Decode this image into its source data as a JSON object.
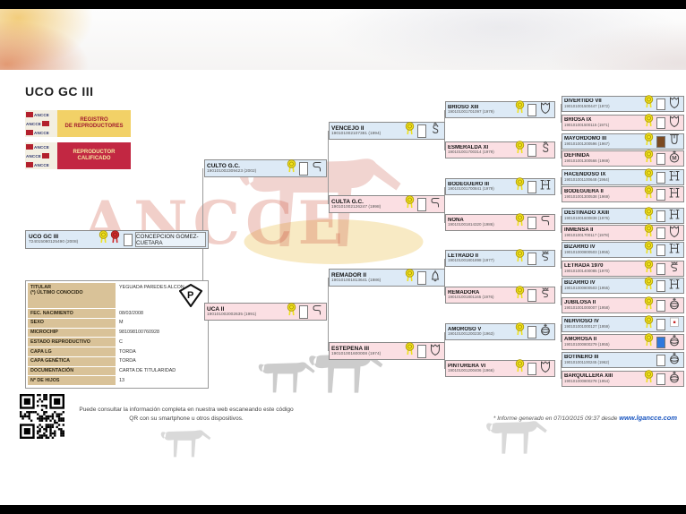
{
  "header": {
    "title": "UCO GC III"
  },
  "brand": {
    "mini_logo_text": "ANCCE",
    "watermark_text": "ANCCE"
  },
  "badges": [
    {
      "line1": "REGISTRO",
      "line2": "DE REPRODUCTORES",
      "bg": "#f2d167",
      "fg": "#a01a2e"
    },
    {
      "line1": "REPRODUCTOR",
      "line2": "CALIFICADO",
      "bg": "#c22742",
      "fg": "#f6e7a0"
    }
  ],
  "subject": {
    "name": "UCO GC III",
    "code": "724015080125490 (2008)",
    "owner": "CONCEPCION GOMEZ-CUETARA",
    "rosettes": [
      "yellow",
      "red"
    ],
    "coat": "white"
  },
  "details": {
    "rows": [
      {
        "label": "TITULAR",
        "label2": "(*) ÚLTIMO CONOCIDO",
        "value": "YEGUADA PAREDES ALCON",
        "tall": true,
        "p_mark": "P"
      },
      {
        "label": "FEC. NACIMIENTO",
        "value": "08/03/2008"
      },
      {
        "label": "SEXO",
        "value": "M"
      },
      {
        "label": "MICROCHIP",
        "value": "981098100760928"
      },
      {
        "label": "ESTADO REPRODUCTIVO",
        "value": "C"
      },
      {
        "label": "CAPA LG",
        "value": "TORDA"
      },
      {
        "label": "CAPA GENÉTICA",
        "value": "TORDA"
      },
      {
        "label": "DOCUMENTACIÓN",
        "value": "CARTA DE TITULARIDAD"
      },
      {
        "label": "Nº DE HIJOS",
        "value": "13"
      }
    ]
  },
  "pedigree": {
    "columns": [
      [
        {
          "name": "CULTO G.C.",
          "code": "190101002309423 (2002)",
          "sex": "m",
          "brand": "hook-s",
          "rosette": true,
          "coat": "white"
        },
        {
          "name": "UCA II",
          "code": "190101002002635 (1991)",
          "sex": "f",
          "brand": "hook-s",
          "rosette": true,
          "coat": "white"
        }
      ],
      [
        {
          "name": "VENCEJO II",
          "code": "190101002107381 (1994)",
          "sex": "m",
          "brand": "fancy-s",
          "rosette": true,
          "coat": "white"
        },
        {
          "name": "CULTA G.C.",
          "code": "190101002126247 (1998)",
          "sex": "f",
          "brand": "hook-s",
          "rosette": true,
          "coat": "white"
        },
        {
          "name": "REMADOR II",
          "code": "190101001813641 (1986)",
          "sex": "m",
          "brand": "bell",
          "rosette": true,
          "coat": "white"
        },
        {
          "name": "ESTEPEÑA III",
          "code": "190101001600008 (1974)",
          "sex": "f",
          "brand": "shield",
          "rosette": true,
          "coat": "white"
        }
      ],
      [
        {
          "name": "BRIOSO XIII",
          "code": "190101001701097 (1979)",
          "sex": "m",
          "brand": "shield",
          "rosette": true,
          "coat": "white"
        },
        {
          "name": "ESMERALDA XI",
          "code": "190101001700314 (1979)",
          "sex": "f",
          "brand": "fancy-s",
          "rosette": true,
          "coat": "white"
        },
        {
          "name": "BODEGUERO III",
          "code": "190101001700841 (1979)",
          "sex": "m",
          "brand": "h-brand",
          "rosette": true,
          "coat": "white"
        },
        {
          "name": "NONA",
          "code": "190101001814320 (1986)",
          "sex": "f",
          "brand": "hook-s",
          "rosette": true,
          "coat": "white"
        },
        {
          "name": "LETRADO II",
          "code": "190101001801898 (1977)",
          "sex": "m",
          "brand": "squiggle",
          "rosette": true,
          "coat": "white"
        },
        {
          "name": "REMADORA",
          "code": "190101001801165 (1976)",
          "sex": "f",
          "brand": "squiggle",
          "rosette": true,
          "coat": "white"
        },
        {
          "name": "AMOROSO V",
          "code": "190101001200230 (1963)",
          "sex": "m",
          "brand": "orb",
          "rosette": true,
          "coat": "white"
        },
        {
          "name": "PINTURERA VI",
          "code": "190101001200406 (1966)",
          "sex": "f",
          "brand": "shield",
          "rosette": true,
          "coat": "white"
        }
      ],
      [
        {
          "name": "DIVERTIDO VII",
          "code": "190101001500447 (1972)",
          "sex": "m",
          "brand": "shield",
          "rosette": true,
          "coat": "white"
        },
        {
          "name": "BRIOSA IX",
          "code": "190101001500115 (1971)",
          "sex": "f",
          "brand": "shield",
          "rosette": true,
          "coat": "white"
        },
        {
          "name": "MAYORDOMO III",
          "code": "190101001200596 (1967)",
          "sex": "m",
          "brand": "u-crown",
          "rosette": true,
          "coat": "brown"
        },
        {
          "name": "DEFINIDA",
          "code": "190101001300566 (1969)",
          "sex": "f",
          "brand": "m-circle",
          "rosette": true,
          "coat": "white"
        },
        {
          "name": "HACENDOSO IX",
          "code": "190101001100648 (1964)",
          "sex": "m",
          "brand": "h-brand",
          "rosette": true,
          "coat": "white"
        },
        {
          "name": "BODEGUERA II",
          "code": "190101001300538 (1969)",
          "sex": "f",
          "brand": "h-brand",
          "rosette": true,
          "coat": "white"
        },
        {
          "name": "DESTINADO XXIII",
          "code": "190101001600838 (1976)",
          "sex": "m",
          "brand": "h-brand",
          "rosette": true,
          "coat": "white"
        },
        {
          "name": "INMENSA II",
          "code": "190101001700117 (1978)",
          "sex": "f",
          "brand": "shield",
          "rosette": true,
          "coat": "white"
        },
        {
          "name": "BIZARRO IV",
          "code": "190101000800503 (1955)",
          "sex": "m",
          "brand": "h-brand",
          "rosette": true,
          "coat": "white"
        },
        {
          "name": "LETRADA 1970",
          "code": "190101001400085 (1970)",
          "sex": "f",
          "brand": "squiggle",
          "rosette": true,
          "coat": "white"
        },
        {
          "name": "BIZARRO IV",
          "code": "190101000800503 (1955)",
          "sex": "m",
          "brand": "h-brand",
          "rosette": true,
          "coat": "white"
        },
        {
          "name": "JUBILOSA II",
          "code": "190101001000007 (1958)",
          "sex": "f",
          "brand": "orb",
          "rosette": true,
          "coat": "white"
        },
        {
          "name": "NERVIOSO IV",
          "code": "190101001000127 (1959)",
          "sex": "m",
          "brand": "red-dot",
          "rosette": true,
          "coat": "white"
        },
        {
          "name": "AMOROSA II",
          "code": "190101000800279 (1955)",
          "sex": "f",
          "brand": "orb",
          "rosette": true,
          "coat": "blue"
        },
        {
          "name": "BOTINERO III",
          "code": "190101001100245 (1962)",
          "sex": "m",
          "brand": "orb",
          "rosette": false,
          "coat": "white"
        },
        {
          "name": "BARQUILLERA XIII",
          "code": "190101000800278 (1954)",
          "sex": "f",
          "brand": "orb",
          "rosette": true,
          "coat": "white"
        }
      ]
    ]
  },
  "footer": {
    "qr_text": "Puede consultar la información completa en nuestra web escaneando este código QR con su smartphone u otros dispositivos.",
    "report_note": "* Informe generado en 07/10/2015 09:37 desde ",
    "report_link": "www.lgancce.com"
  },
  "colors": {
    "male_bg": "#ddeaf6",
    "female_bg": "#fbdfe3",
    "box_border": "#8a8a8a",
    "label_tan": "#d9c298",
    "badge_yellow": "#f2d167",
    "badge_red": "#c22742",
    "rosette_yellow": "#efe11f",
    "rosette_red": "#cf2b2b",
    "coat_white": "#ffffff",
    "coat_brown": "#7b4a21",
    "coat_blue": "#2f78dd",
    "link_blue": "#1a56c0"
  }
}
